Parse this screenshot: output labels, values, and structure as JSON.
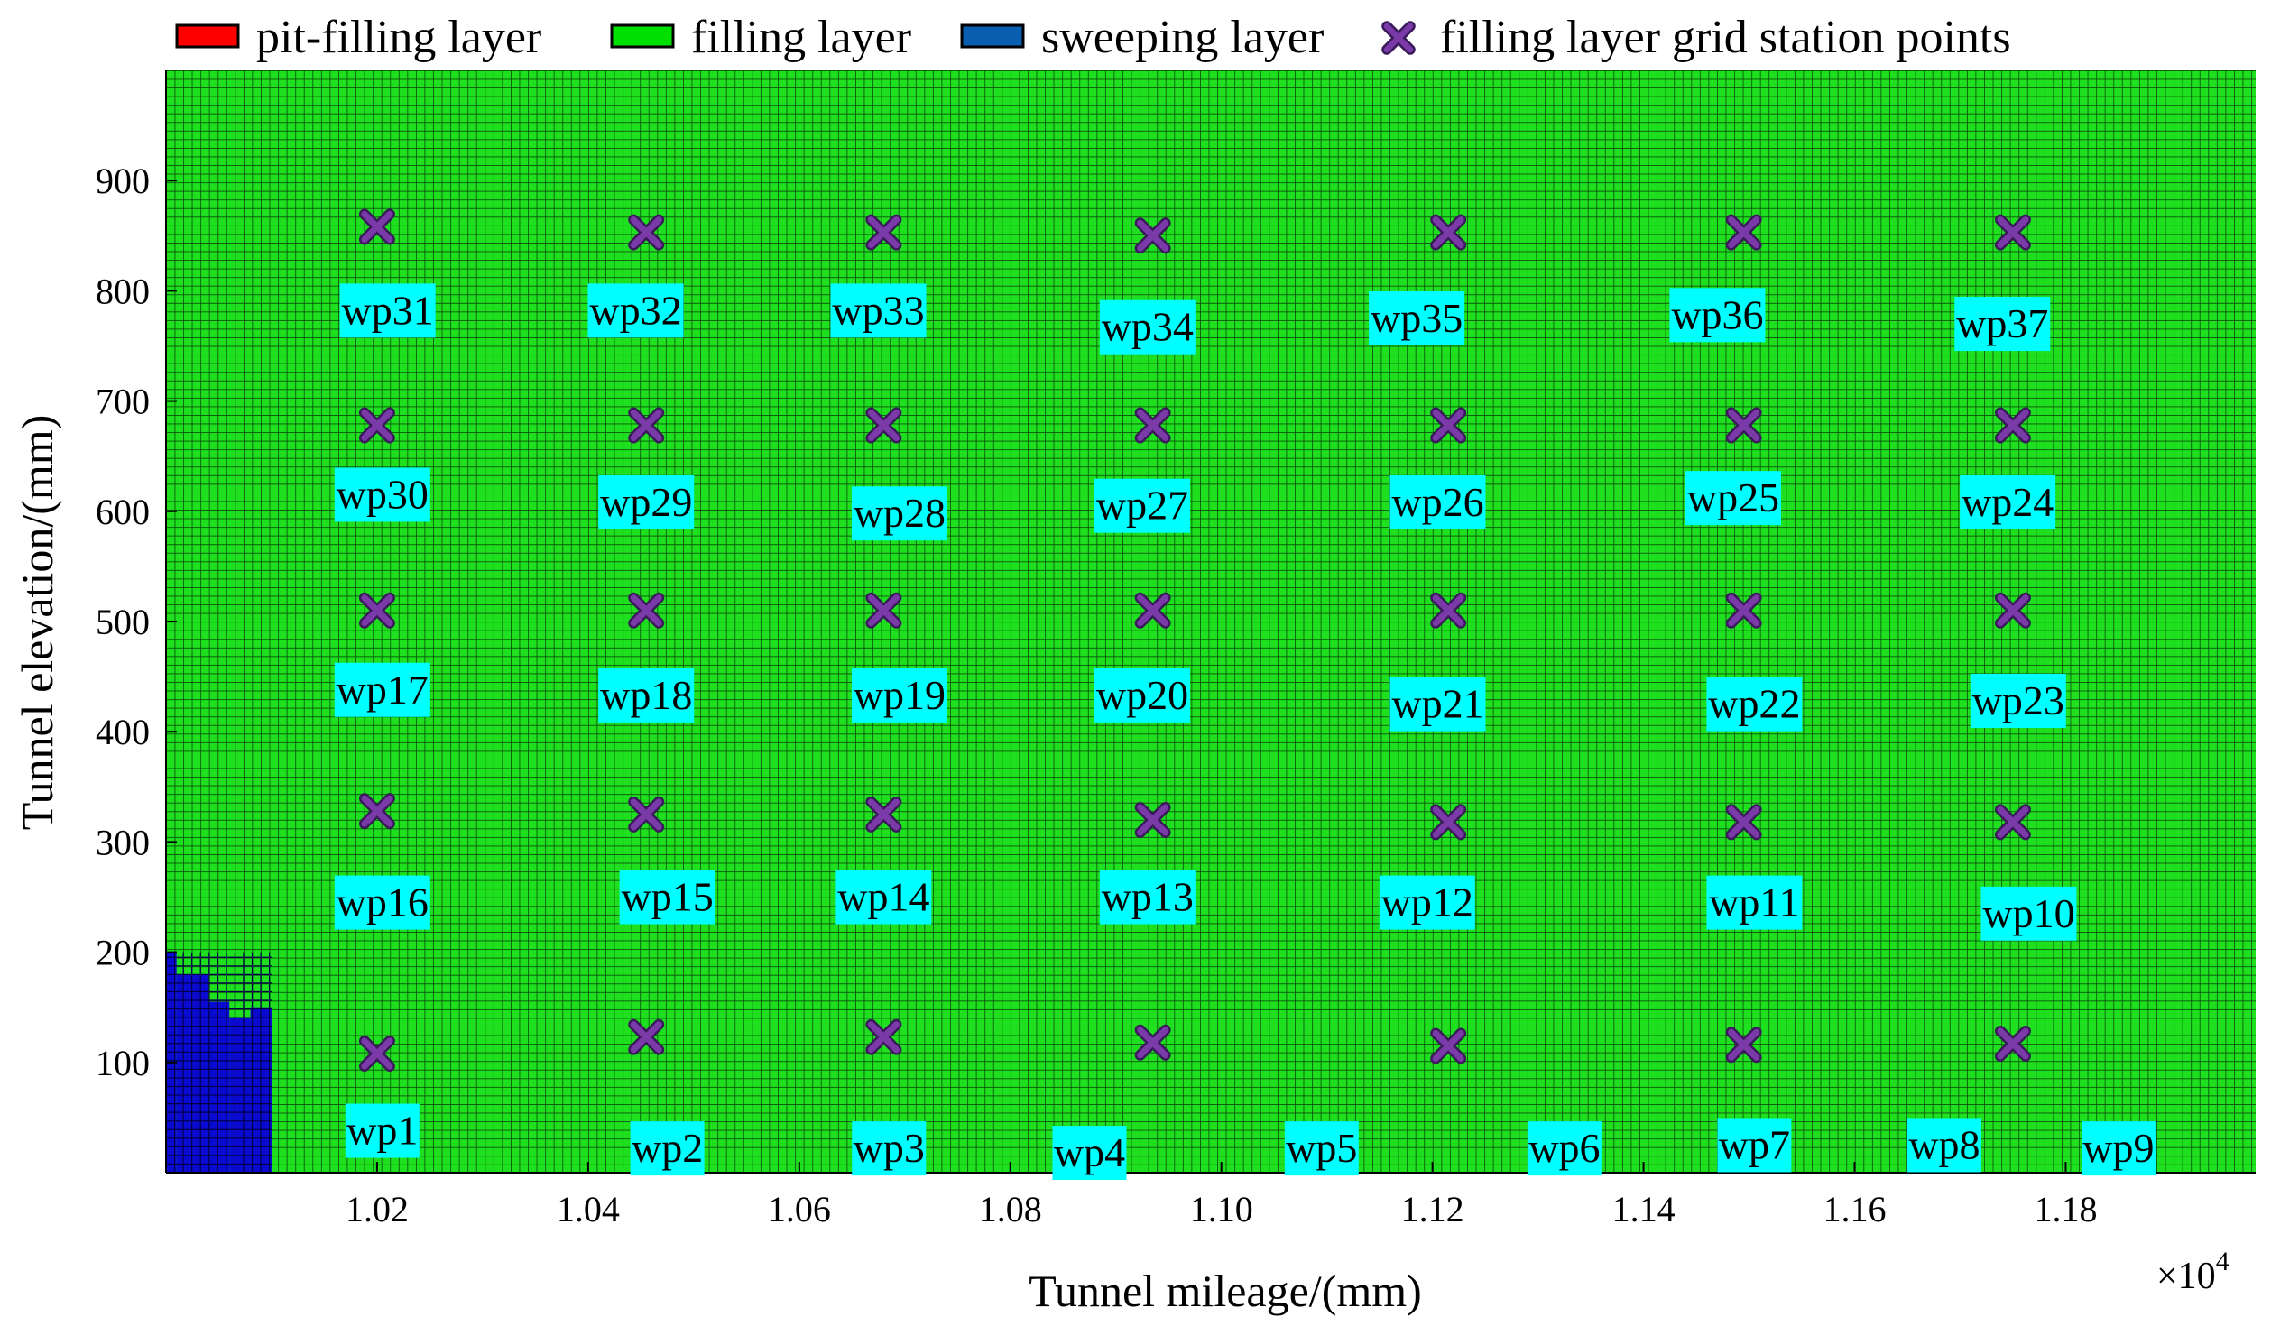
{
  "chart_data": {
    "type": "scatter",
    "xlabel": "Tunnel mileage/(mm)",
    "ylabel": "Tunnel elevation/(mm)",
    "x_multiplier_label": "×10",
    "x_multiplier_exp": "4",
    "xlim": [
      1.0,
      1.198
    ],
    "ylim": [
      0,
      1000
    ],
    "xticks": [
      1.02,
      1.04,
      1.06,
      1.08,
      1.1,
      1.12,
      1.14,
      1.16,
      1.18
    ],
    "yticks": [
      100,
      200,
      300,
      400,
      500,
      600,
      700,
      800,
      900
    ],
    "xtick_labels": [
      "1.02",
      "1.04",
      "1.06",
      "1.08",
      "1.10",
      "1.12",
      "1.14",
      "1.16",
      "1.18"
    ],
    "ytick_labels": [
      "100",
      "200",
      "300",
      "400",
      "500",
      "600",
      "700",
      "800",
      "900"
    ],
    "grid": true,
    "legend": {
      "placement": "top",
      "entries": [
        {
          "label": "pit-filling layer",
          "color": "#ff0000",
          "marker": "patch"
        },
        {
          "label": "filling layer",
          "color": "#00e000",
          "marker": "patch"
        },
        {
          "label": "sweeping layer",
          "color": "#0a5eb0",
          "marker": "patch"
        },
        {
          "label": "filling layer grid station points",
          "color": "#7a3aa8",
          "marker": "x"
        }
      ]
    },
    "colors": {
      "filling_layer": "#1ee01e",
      "grid_lines": "#0b4a0b",
      "sweeping_layer": "#0a0ad0",
      "station_marker": "#7a3aa8",
      "label_box": "#00ffff"
    },
    "points": [
      {
        "label": "wp1",
        "x": 1.02,
        "y": 108
      },
      {
        "label": "wp2",
        "x": 1.0455,
        "y": 123
      },
      {
        "label": "wp3",
        "x": 1.068,
        "y": 123
      },
      {
        "label": "wp4",
        "x": 1.0935,
        "y": 118
      },
      {
        "label": "wp5",
        "x": 1.1215,
        "y": 115
      },
      {
        "label": "wp6",
        "x": 1.1495,
        "y": 116
      },
      {
        "label": "wp7",
        "x": 1.175,
        "y": 117
      },
      {
        "label": "wp16",
        "x": 1.02,
        "y": 328
      },
      {
        "label": "wp15",
        "x": 1.0455,
        "y": 325
      },
      {
        "label": "wp14",
        "x": 1.068,
        "y": 325
      },
      {
        "label": "wp13",
        "x": 1.0935,
        "y": 320
      },
      {
        "label": "wp12",
        "x": 1.1215,
        "y": 318
      },
      {
        "label": "wp11",
        "x": 1.1495,
        "y": 318
      },
      {
        "label": "wp10",
        "x": 1.175,
        "y": 318
      },
      {
        "label": "wp17",
        "x": 1.02,
        "y": 510
      },
      {
        "label": "wp18",
        "x": 1.0455,
        "y": 510
      },
      {
        "label": "wp19",
        "x": 1.068,
        "y": 510
      },
      {
        "label": "wp20",
        "x": 1.0935,
        "y": 510
      },
      {
        "label": "wp21",
        "x": 1.1215,
        "y": 510
      },
      {
        "label": "wp22",
        "x": 1.1495,
        "y": 510
      },
      {
        "label": "wp23",
        "x": 1.175,
        "y": 510
      },
      {
        "label": "wp30",
        "x": 1.02,
        "y": 678
      },
      {
        "label": "wp29",
        "x": 1.0455,
        "y": 678
      },
      {
        "label": "wp28",
        "x": 1.068,
        "y": 678
      },
      {
        "label": "wp27",
        "x": 1.0935,
        "y": 678
      },
      {
        "label": "wp26",
        "x": 1.1215,
        "y": 678
      },
      {
        "label": "wp25",
        "x": 1.1495,
        "y": 678
      },
      {
        "label": "wp24",
        "x": 1.175,
        "y": 678
      },
      {
        "label": "wp31",
        "x": 1.02,
        "y": 858
      },
      {
        "label": "wp32",
        "x": 1.0455,
        "y": 853
      },
      {
        "label": "wp33",
        "x": 1.068,
        "y": 853
      },
      {
        "label": "wp34",
        "x": 1.0935,
        "y": 850
      },
      {
        "label": "wp35",
        "x": 1.1215,
        "y": 853
      },
      {
        "label": "wp36",
        "x": 1.1495,
        "y": 853
      },
      {
        "label": "wp37",
        "x": 1.175,
        "y": 853
      }
    ],
    "annotations": [
      {
        "text": "wp1",
        "x": 1.0205,
        "y": 38
      },
      {
        "text": "wp2",
        "x": 1.0475,
        "y": 22
      },
      {
        "text": "wp3",
        "x": 1.0685,
        "y": 22
      },
      {
        "text": "wp4",
        "x": 1.0875,
        "y": 18
      },
      {
        "text": "wp5",
        "x": 1.1095,
        "y": 22
      },
      {
        "text": "wp6",
        "x": 1.1325,
        "y": 22
      },
      {
        "text": "wp7",
        "x": 1.1505,
        "y": 25
      },
      {
        "text": "wp8",
        "x": 1.1685,
        "y": 25
      },
      {
        "text": "wp9",
        "x": 1.185,
        "y": 22
      },
      {
        "text": "wp16",
        "x": 1.0205,
        "y": 245
      },
      {
        "text": "wp15",
        "x": 1.0475,
        "y": 250
      },
      {
        "text": "wp14",
        "x": 1.068,
        "y": 250
      },
      {
        "text": "wp13",
        "x": 1.093,
        "y": 250
      },
      {
        "text": "wp12",
        "x": 1.1195,
        "y": 245
      },
      {
        "text": "wp11",
        "x": 1.1505,
        "y": 245
      },
      {
        "text": "wp10",
        "x": 1.1765,
        "y": 235
      },
      {
        "text": "wp17",
        "x": 1.0205,
        "y": 438
      },
      {
        "text": "wp18",
        "x": 1.0455,
        "y": 433
      },
      {
        "text": "wp19",
        "x": 1.0695,
        "y": 433
      },
      {
        "text": "wp20",
        "x": 1.0925,
        "y": 433
      },
      {
        "text": "wp21",
        "x": 1.1205,
        "y": 425
      },
      {
        "text": "wp22",
        "x": 1.1505,
        "y": 425
      },
      {
        "text": "wp23",
        "x": 1.1755,
        "y": 428
      },
      {
        "text": "wp30",
        "x": 1.0205,
        "y": 615
      },
      {
        "text": "wp29",
        "x": 1.0455,
        "y": 608
      },
      {
        "text": "wp28",
        "x": 1.0695,
        "y": 598
      },
      {
        "text": "wp27",
        "x": 1.0925,
        "y": 605
      },
      {
        "text": "wp26",
        "x": 1.1205,
        "y": 608
      },
      {
        "text": "wp25",
        "x": 1.1485,
        "y": 612
      },
      {
        "text": "wp24",
        "x": 1.1745,
        "y": 608
      },
      {
        "text": "wp31",
        "x": 1.021,
        "y": 782
      },
      {
        "text": "wp32",
        "x": 1.0445,
        "y": 782
      },
      {
        "text": "wp33",
        "x": 1.0675,
        "y": 782
      },
      {
        "text": "wp34",
        "x": 1.093,
        "y": 767
      },
      {
        "text": "wp35",
        "x": 1.1185,
        "y": 775
      },
      {
        "text": "wp36",
        "x": 1.147,
        "y": 778
      },
      {
        "text": "wp37",
        "x": 1.174,
        "y": 770
      }
    ],
    "sweeping_layer_region": {
      "steps": [
        {
          "x0": 1.0,
          "x1": 1.001,
          "y1": 200
        },
        {
          "x0": 1.001,
          "x1": 1.004,
          "y1": 180
        },
        {
          "x0": 1.004,
          "x1": 1.006,
          "y1": 155
        },
        {
          "x0": 1.006,
          "x1": 1.008,
          "y1": 140
        },
        {
          "x0": 1.008,
          "x1": 1.01,
          "y1": 150
        }
      ],
      "left_column_top": 200
    }
  }
}
